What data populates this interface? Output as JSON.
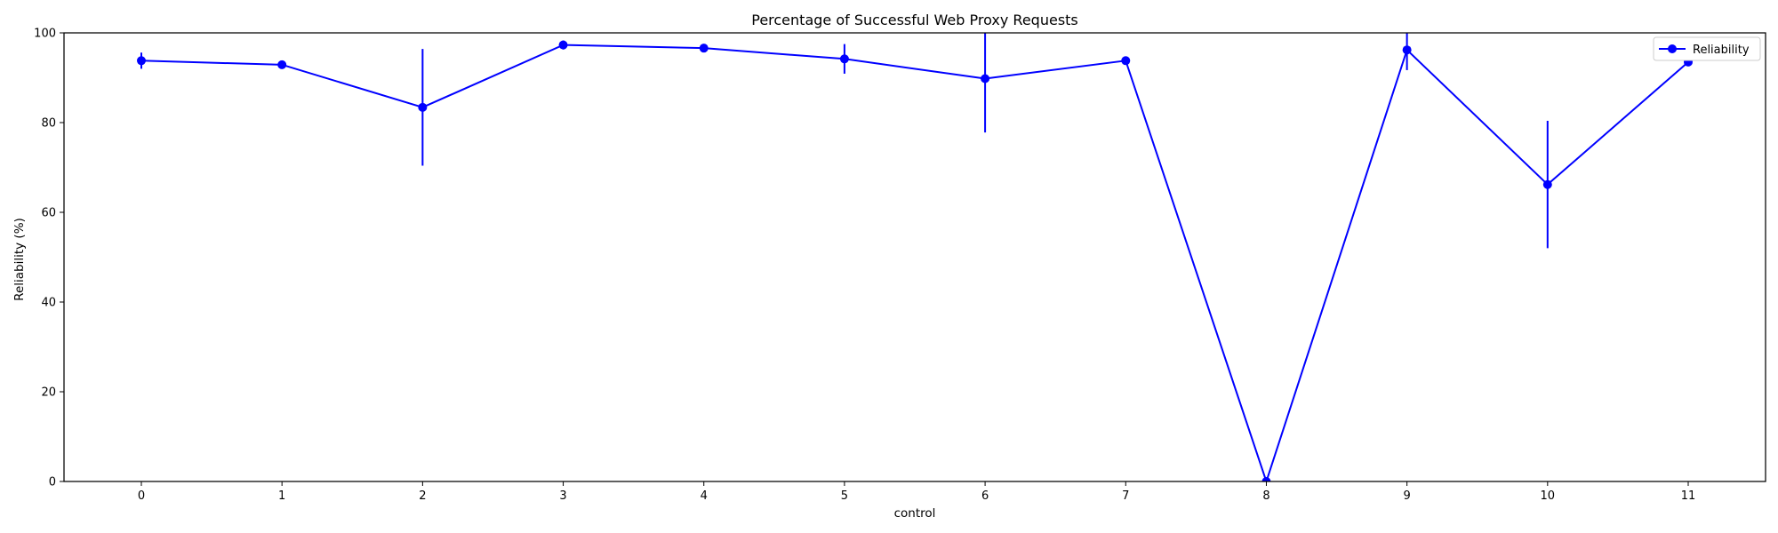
{
  "chart_data": {
    "type": "line",
    "title": "Percentage of Successful Web Proxy Requests",
    "xlabel": "control",
    "ylabel": "Reliability (%)",
    "x": [
      0,
      1,
      2,
      3,
      4,
      5,
      6,
      7,
      8,
      9,
      10,
      11
    ],
    "xlim": [
      -0.55,
      11.55
    ],
    "ylim": [
      0,
      100
    ],
    "yticks": [
      0,
      20,
      40,
      60,
      80,
      100
    ],
    "grid": false,
    "legend_position": "upper right",
    "series": [
      {
        "name": "Reliability",
        "color": "#0000ff",
        "marker": "circle",
        "values": [
          93.8,
          92.9,
          83.4,
          97.3,
          96.6,
          94.2,
          89.8,
          93.8,
          0.0,
          96.2,
          66.2,
          93.5
        ],
        "errors": [
          1.8,
          0.8,
          13.0,
          1.0,
          0.6,
          3.3,
          12.0,
          0.5,
          0.0,
          4.5,
          14.2,
          0.5
        ]
      }
    ]
  }
}
